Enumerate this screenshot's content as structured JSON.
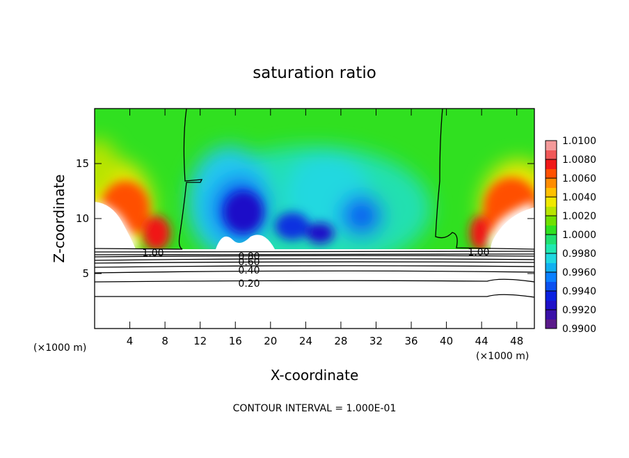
{
  "chart_data": {
    "type": "contour",
    "title": "saturation ratio",
    "xlabel": "X-coordinate",
    "ylabel": "Z-coordinate",
    "x_unit": "(×1000 m)",
    "x_unit_right": "(×1000 m)",
    "footer": "CONTOUR INTERVAL = 1.000E-01",
    "xlim": [
      0,
      50
    ],
    "xticks": [
      4,
      8,
      12,
      16,
      20,
      24,
      28,
      32,
      36,
      40,
      44,
      48
    ],
    "ylim": [
      0,
      20
    ],
    "yticks": [
      5,
      10,
      15
    ],
    "contours": [
      {
        "value": 1,
        "label": "1.00"
      },
      {
        "value": 1,
        "label": "1.00"
      },
      {
        "value": 0.8,
        "label": "0.80"
      },
      {
        "value": 0.6,
        "label": "0.60"
      },
      {
        "value": 0.4,
        "label": "0.40"
      },
      {
        "value": 0.2,
        "label": "0.20"
      }
    ],
    "colorbar": {
      "lim": [
        0.99,
        1.01
      ],
      "ticks": [
        {
          "value": 0.99,
          "label": "0.9900"
        },
        {
          "value": 0.992,
          "label": "0.9920"
        },
        {
          "value": 0.994,
          "label": "0.9940"
        },
        {
          "value": 0.996,
          "label": "0.9960"
        },
        {
          "value": 0.998,
          "label": "0.9980"
        },
        {
          "value": 1,
          "label": "1.0000"
        },
        {
          "value": 1.002,
          "label": "1.0020"
        },
        {
          "value": 1.004,
          "label": "1.0040"
        },
        {
          "value": 1.006,
          "label": "1.0060"
        },
        {
          "value": 1.008,
          "label": "1.0080"
        },
        {
          "value": 1.01,
          "label": "1.0100"
        }
      ],
      "colors": [
        "#5a1a8a",
        "#3a10a8",
        "#1e10c8",
        "#0a20e0",
        "#0a50f0",
        "#0a80ff",
        "#10b0f0",
        "#20d8e0",
        "#20e8b0",
        "#20e070",
        "#30e020",
        "#70e000",
        "#b8e400",
        "#f0e800",
        "#ffc000",
        "#ff8c00",
        "#ff5000",
        "#f01818",
        "#f05858",
        "#f49a9a"
      ]
    }
  }
}
